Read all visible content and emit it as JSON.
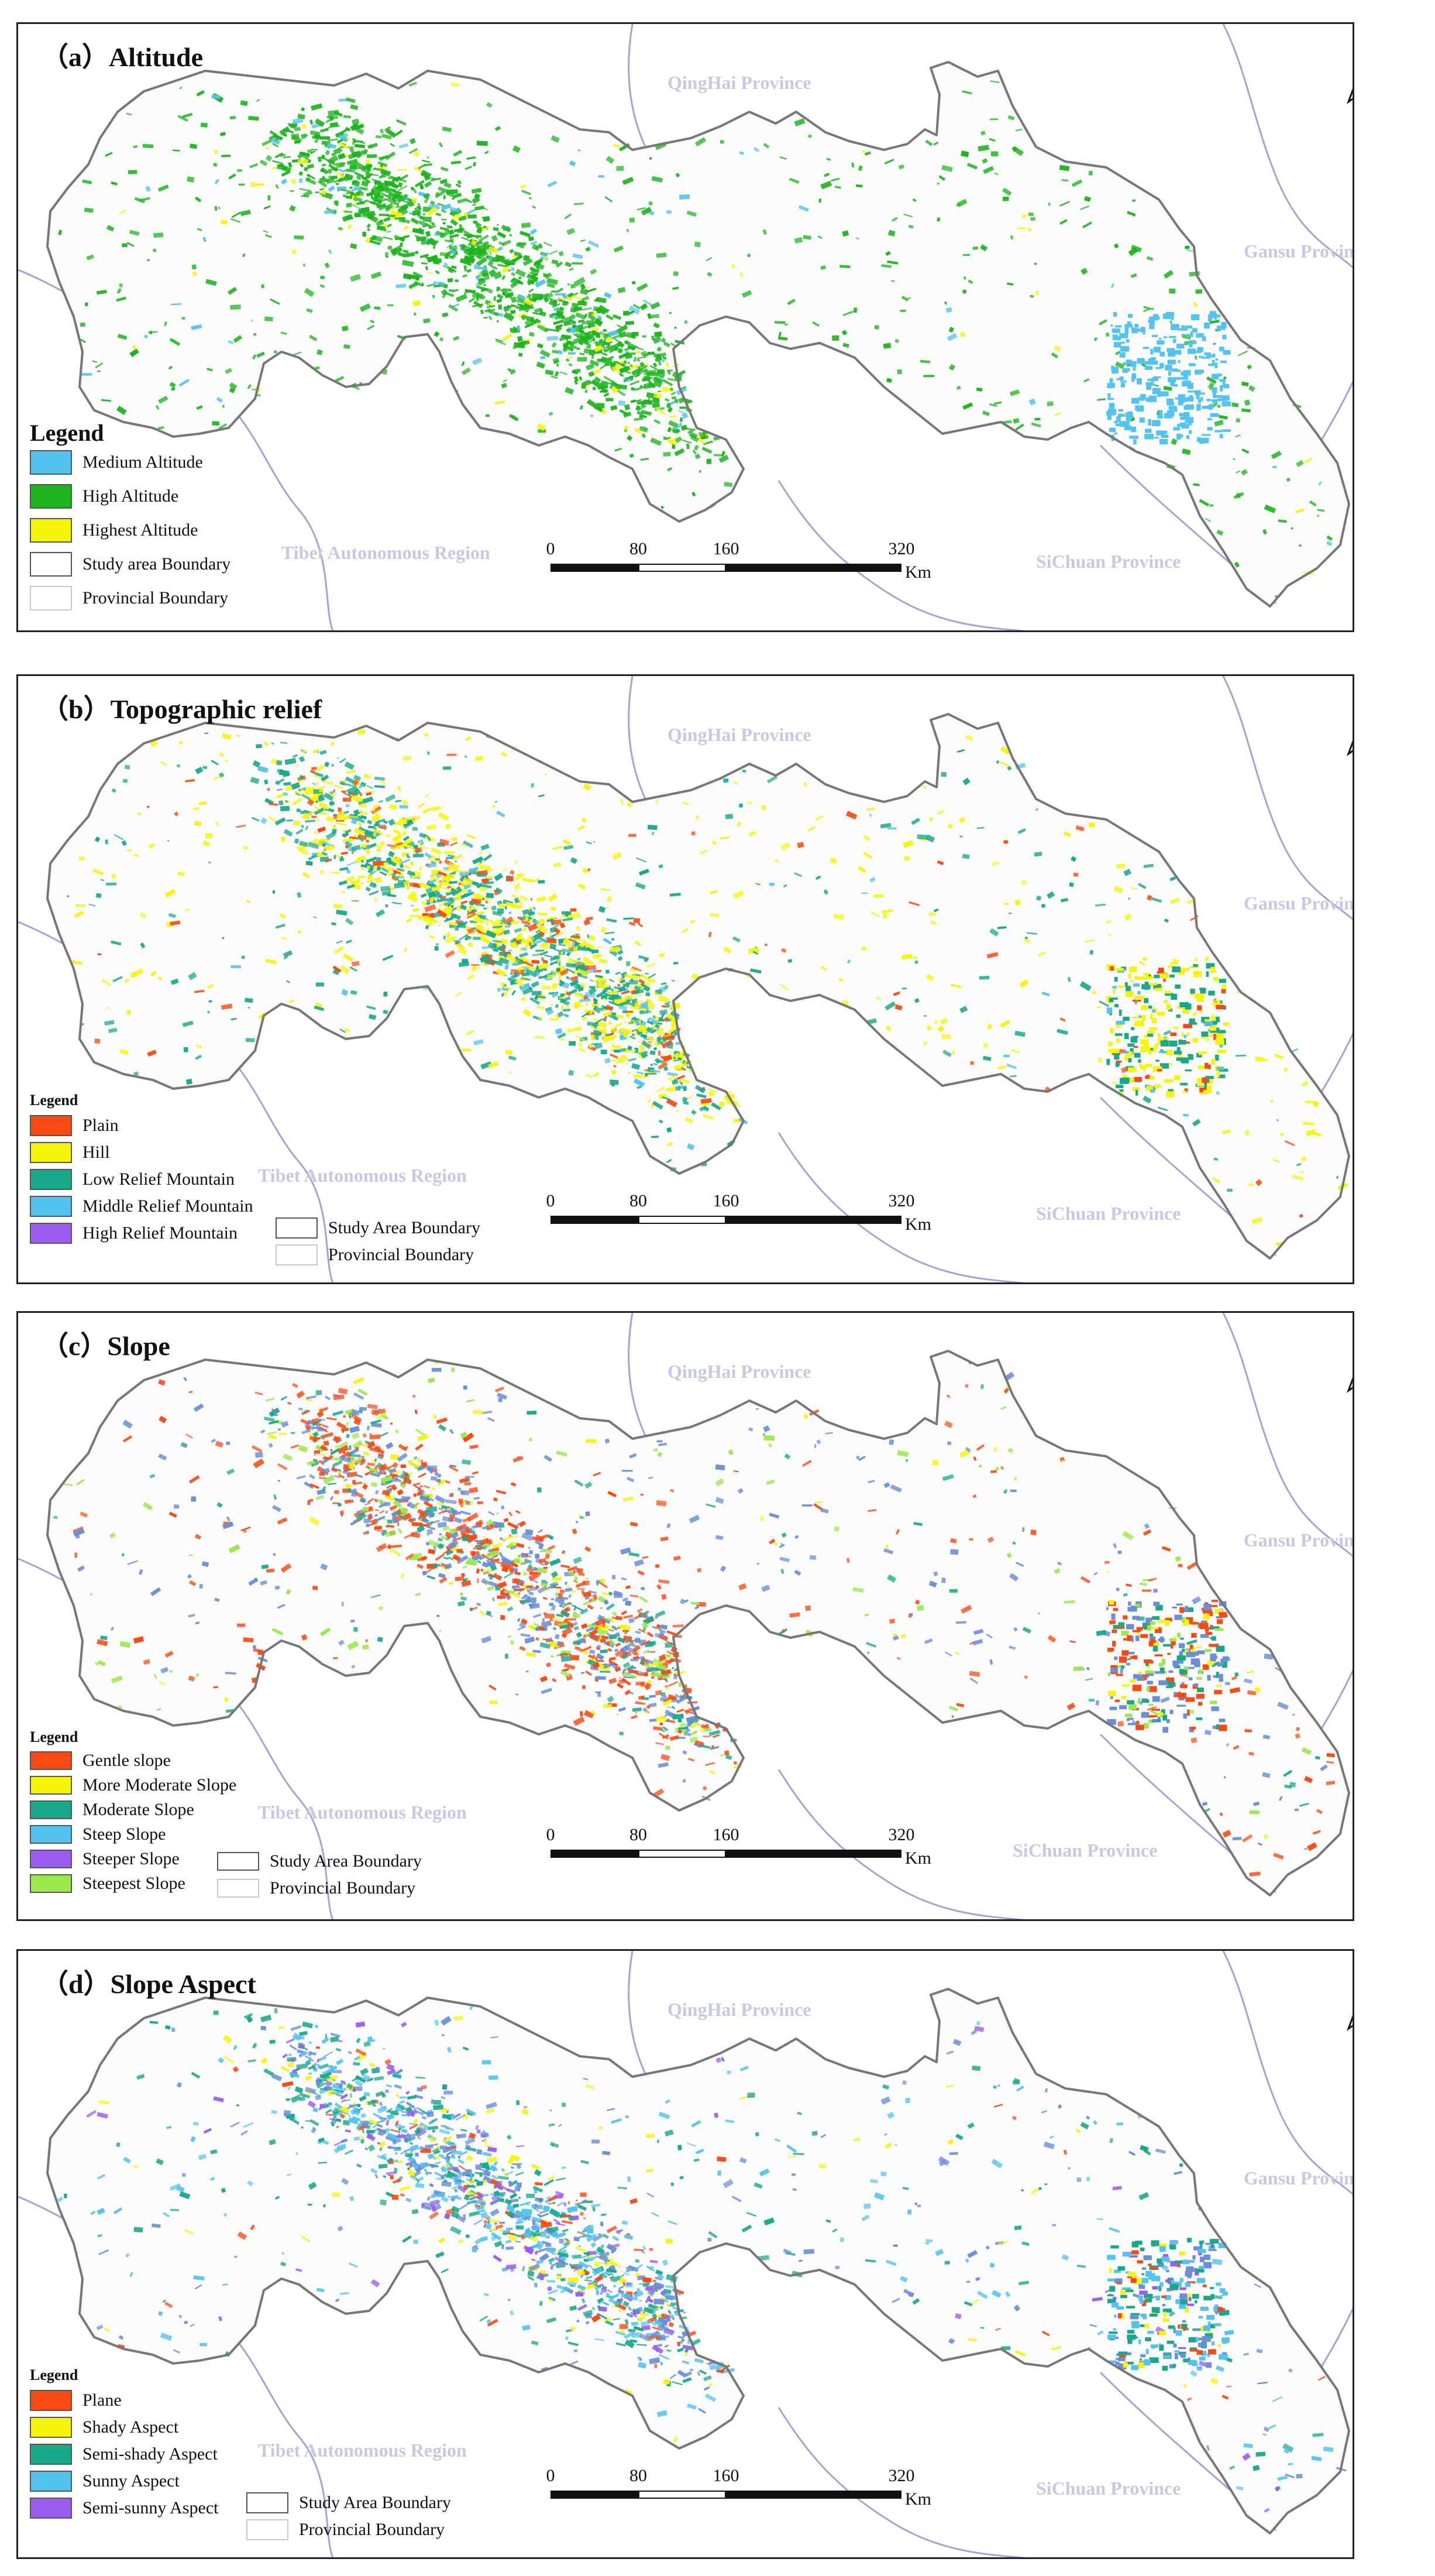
{
  "colors": {
    "panel_border": "#222222",
    "province_label": "#c7c9e4",
    "boundary_line": "#a3a3d8",
    "study_area_outline": "#777777"
  },
  "north_arrow": {
    "letter": "N",
    "icon": "north-arrow-icon"
  },
  "scale_bar": {
    "ticks": [
      "0",
      "80",
      "160",
      "320"
    ],
    "unit": "Km"
  },
  "panels": [
    {
      "title": "（a）Altitude",
      "province_labels": {
        "qinghai": "QingHai Province",
        "gansu": "Gansu Province",
        "tibet": "Tibet Autonomous Region",
        "sichuan": "SiChuan Province"
      },
      "legend": {
        "title": "Legend",
        "items": [
          {
            "label": "Medium Altitude",
            "color": "#55c3f0"
          },
          {
            "label": "High Altitude",
            "color": "#1db41d"
          },
          {
            "label": "Highest Altitude",
            "color": "#f5f50a"
          },
          {
            "label": "Study area Boundary",
            "color": "#ffffff"
          },
          {
            "label": "Provincial Boundary",
            "color": "#ffffff"
          }
        ]
      }
    },
    {
      "title": "（b）Topographic relief",
      "province_labels": {
        "qinghai": "QingHai Province",
        "gansu": "Gansu Province",
        "tibet": "Tibet Autonomous Region",
        "sichuan": "SiChuan Province"
      },
      "legend": {
        "title": "Legend",
        "items": [
          {
            "label": "Plain",
            "color": "#fa4a14"
          },
          {
            "label": "Hill",
            "color": "#f5f50a"
          },
          {
            "label": "Low Relief Mountain",
            "color": "#1aa88a"
          },
          {
            "label": "Middle Relief Mountain",
            "color": "#55c3f0"
          },
          {
            "label": "High Relief Mountain",
            "color": "#9b5cf0"
          }
        ],
        "extra_items": [
          {
            "label": "Study Area Boundary",
            "color": "#ffffff"
          },
          {
            "label": "Provincial Boundary",
            "color": "#ffffff"
          }
        ]
      }
    },
    {
      "title": "（c）Slope",
      "province_labels": {
        "qinghai": "QingHai Province",
        "gansu": "Gansu Province",
        "tibet": "Tibet Autonomous Region",
        "sichuan": "SiChuan Province"
      },
      "legend": {
        "title": "Legend",
        "items": [
          {
            "label": "Gentle slope",
            "color": "#fa4a14"
          },
          {
            "label": "More Moderate Slope",
            "color": "#f5f50a"
          },
          {
            "label": "Moderate Slope",
            "color": "#1aa88a"
          },
          {
            "label": "Steep Slope",
            "color": "#55c3f0"
          },
          {
            "label": "Steeper Slope",
            "color": "#9b5cf0"
          },
          {
            "label": "Steepest Slope",
            "color": "#9be84a"
          }
        ],
        "extra_items": [
          {
            "label": "Study Area Boundary",
            "color": "#ffffff"
          },
          {
            "label": "Provincial Boundary",
            "color": "#ffffff"
          }
        ]
      }
    },
    {
      "title": "（d）Slope Aspect",
      "province_labels": {
        "qinghai": "QingHai Province",
        "gansu": "Gansu Province",
        "tibet": "Tibet Autonomous Region",
        "sichuan": "SiChuan Province"
      },
      "legend": {
        "title": "Legend",
        "items": [
          {
            "label": "Plane",
            "color": "#fa4a14"
          },
          {
            "label": "Shady Aspect",
            "color": "#f5f50a"
          },
          {
            "label": "Semi-shady Aspect",
            "color": "#1aa88a"
          },
          {
            "label": "Sunny Aspect",
            "color": "#55c3f0"
          },
          {
            "label": "Semi-sunny Aspect",
            "color": "#9b5cf0"
          }
        ],
        "extra_items": [
          {
            "label": "Study Area Boundary",
            "color": "#ffffff"
          },
          {
            "label": "Provincial Boundary",
            "color": "#ffffff"
          }
        ]
      }
    }
  ]
}
